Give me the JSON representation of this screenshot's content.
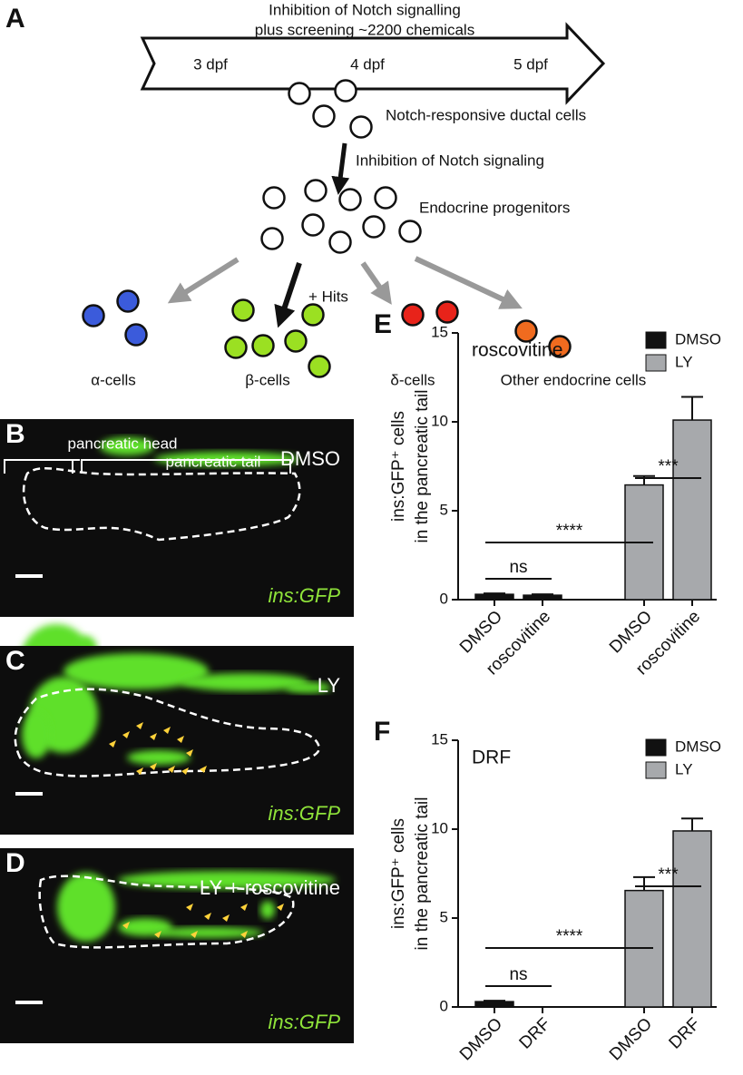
{
  "panel_a": {
    "label": "A",
    "timeline_title": [
      "Inhibition of Notch signalling",
      "plus screening ~2200 chemicals"
    ],
    "timepoints": [
      "3 dpf",
      "4 dpf",
      "5 dpf"
    ],
    "steps": [
      "Notch-responsive ductal cells",
      "Inhibition of Notch signaling",
      "Endocrine progenitors",
      "+ Hits"
    ],
    "cell_types": [
      "α-cells",
      "β-cells",
      "δ-cells",
      "Other endocrine cells"
    ]
  },
  "images": [
    {
      "label": "B",
      "annotations": [
        "pancreatic head",
        "pancreatic tail"
      ],
      "condition": "DMSO",
      "reporter": "ins:GFP"
    },
    {
      "label": "C",
      "condition": "LY",
      "reporter": "ins:GFP"
    },
    {
      "label": "D",
      "condition": "LY + roscovitine",
      "reporter": "ins:GFP"
    }
  ],
  "chart_data": [
    {
      "type": "bar",
      "label": "E",
      "title": "roscovitine",
      "y_label": [
        "ins:GFP⁺ cells",
        "in the pancreatic tail"
      ],
      "categories": [
        "DMSO",
        "roscovitine",
        "DMSO",
        "roscovitine"
      ],
      "series": [
        {
          "name": "DMSO",
          "color": "#111111",
          "values": [
            0.3,
            0.25,
            null,
            null
          ],
          "errors": [
            0.05,
            0.05,
            null,
            null
          ]
        },
        {
          "name": "LY",
          "color": "#a7a9ac",
          "values": [
            null,
            null,
            6.45,
            10.1
          ],
          "errors": [
            null,
            null,
            0.5,
            1.3
          ]
        }
      ],
      "annotations": [
        "ns",
        "****",
        "***"
      ],
      "ylim": [
        0,
        15
      ],
      "yticks": [
        0,
        5,
        10,
        15
      ]
    },
    {
      "type": "bar",
      "label": "F",
      "title": "DRF",
      "y_label": [
        "ins:GFP⁺ cells",
        "in the pancreatic tail"
      ],
      "categories": [
        "DMSO",
        "DRF",
        "DMSO",
        "DRF"
      ],
      "series": [
        {
          "name": "DMSO",
          "color": "#111111",
          "values": [
            0.3,
            0,
            null,
            null
          ],
          "errors": [
            0.05,
            0,
            null,
            null
          ]
        },
        {
          "name": "LY",
          "color": "#a7a9ac",
          "values": [
            null,
            null,
            6.55,
            9.9
          ],
          "errors": [
            null,
            null,
            0.75,
            0.7
          ]
        }
      ],
      "annotations": [
        "ns",
        "****",
        "***"
      ],
      "ylim": [
        0,
        15
      ],
      "yticks": [
        0,
        5,
        10,
        15
      ]
    }
  ]
}
